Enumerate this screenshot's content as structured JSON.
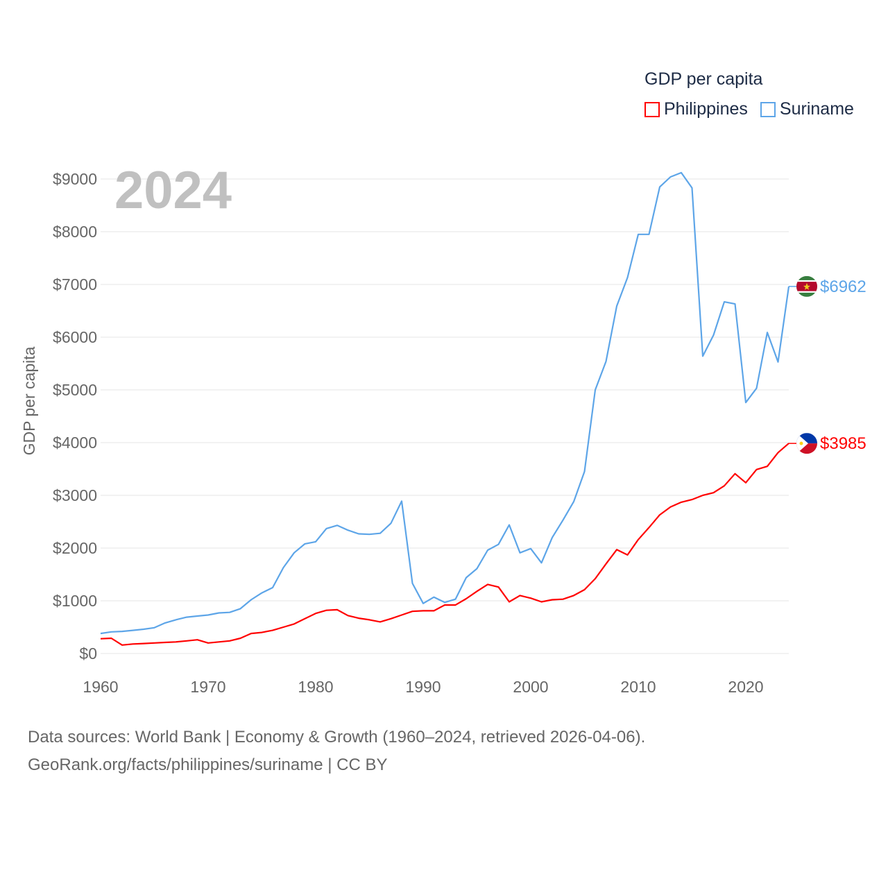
{
  "chart_data": {
    "type": "line",
    "title": "2024",
    "legend_title": "GDP per capita",
    "legend_placement": "top-right",
    "xlabel": "",
    "ylabel": "GDP per capita",
    "xlim": [
      1960,
      2024
    ],
    "ylim": [
      0,
      9000
    ],
    "x_ticks": [
      1960,
      1970,
      1980,
      1990,
      2000,
      2010,
      2020
    ],
    "x_tick_labels": [
      "1960",
      "1970",
      "1980",
      "1990",
      "2000",
      "2010",
      "2020"
    ],
    "y_ticks": [
      0,
      1000,
      2000,
      3000,
      4000,
      5000,
      6000,
      7000,
      8000,
      9000
    ],
    "y_tick_labels": [
      "$0",
      "$1000",
      "$2000",
      "$3000",
      "$4000",
      "$5000",
      "$6000",
      "$7000",
      "$8000",
      "$9000"
    ],
    "grid": true,
    "x": [
      1960,
      1961,
      1962,
      1963,
      1964,
      1965,
      1966,
      1967,
      1968,
      1969,
      1970,
      1971,
      1972,
      1973,
      1974,
      1975,
      1976,
      1977,
      1978,
      1979,
      1980,
      1981,
      1982,
      1983,
      1984,
      1985,
      1986,
      1987,
      1988,
      1989,
      1990,
      1991,
      1992,
      1993,
      1994,
      1995,
      1996,
      1997,
      1998,
      1999,
      2000,
      2001,
      2002,
      2003,
      2004,
      2005,
      2006,
      2007,
      2008,
      2009,
      2010,
      2011,
      2012,
      2013,
      2014,
      2015,
      2016,
      2017,
      2018,
      2019,
      2020,
      2021,
      2022,
      2023,
      2024
    ],
    "series": [
      {
        "name": "Philippines",
        "color": "#ff0000",
        "end_label": "$3985",
        "values": [
          280,
          290,
          160,
          180,
          190,
          200,
          210,
          220,
          240,
          260,
          200,
          220,
          240,
          290,
          380,
          400,
          440,
          500,
          560,
          660,
          760,
          820,
          830,
          720,
          670,
          640,
          600,
          660,
          730,
          800,
          810,
          810,
          920,
          920,
          1040,
          1180,
          1310,
          1260,
          980,
          1100,
          1050,
          980,
          1020,
          1030,
          1100,
          1210,
          1420,
          1700,
          1970,
          1870,
          2160,
          2390,
          2630,
          2780,
          2870,
          2920,
          3000,
          3050,
          3180,
          3410,
          3240,
          3490,
          3550,
          3810,
          3985
        ]
      },
      {
        "name": "Suriname",
        "color": "#5da5e8",
        "end_label": "$6962",
        "values": [
          380,
          410,
          420,
          440,
          460,
          490,
          580,
          640,
          690,
          710,
          730,
          770,
          780,
          850,
          1020,
          1150,
          1250,
          1630,
          1910,
          2080,
          2120,
          2370,
          2430,
          2340,
          2270,
          2260,
          2280,
          2470,
          2890,
          1330,
          950,
          1070,
          970,
          1030,
          1440,
          1610,
          1960,
          2070,
          2440,
          1910,
          1990,
          1720,
          2200,
          2530,
          2880,
          3450,
          5000,
          5540,
          6590,
          7130,
          7950,
          7950,
          8850,
          9040,
          9120,
          8830,
          5640,
          6040,
          6670,
          6630,
          4760,
          5030,
          6090,
          5530,
          6962
        ]
      }
    ]
  },
  "footer": {
    "line1": "Data sources: World Bank | Economy & Growth (1960–2024, retrieved 2026-04-06).",
    "line2": "GeoRank.org/facts/philippines/suriname | CC BY"
  }
}
